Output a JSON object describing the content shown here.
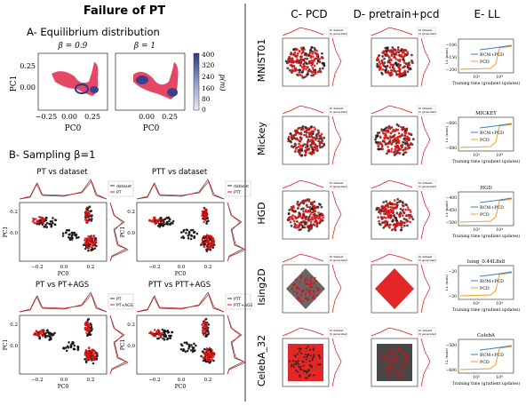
{
  "title": "Failure of PT",
  "panelA": {
    "heading": "A- Equilibrium distribution",
    "subplots": [
      {
        "beta_label": "β = 0.9",
        "xlabel": "PC0",
        "xticks": [
          "−0.25",
          "0.00",
          "0.25"
        ]
      },
      {
        "beta_label": "β = 1",
        "xlabel": "PC0",
        "xticks": [
          "0.00",
          "0.25"
        ]
      }
    ],
    "ylabel": "PC1",
    "yticks": [
      "0.25",
      "0.00"
    ],
    "colorbar": {
      "label": "p(m)",
      "ticks": [
        "400",
        "320",
        "240",
        "160",
        "80",
        "0"
      ]
    }
  },
  "panelB": {
    "heading": "B- Sampling β=1",
    "subplots": [
      {
        "title": "PT vs dataset",
        "legend": [
          "dataset",
          "PT"
        ]
      },
      {
        "title": "PTT vs dataset",
        "legend": [
          "dataset",
          "PTT"
        ]
      },
      {
        "title": "PT vs PT+AGS",
        "legend": [
          "PT",
          "PT+AGS"
        ]
      },
      {
        "title": "PTT vs PTT+AGS",
        "legend": [
          "PTT",
          "PTT+AGS"
        ]
      }
    ],
    "xlabel": "PC0",
    "ylabel": "PC1",
    "xticks": [
      "−0.2",
      "0.0",
      "0.2"
    ],
    "yticks": [
      "0.2",
      "0.0"
    ]
  },
  "columns": {
    "c": "C- PCD",
    "d": "D- pretrain+pcd",
    "e": "E- LL"
  },
  "rows": [
    {
      "name": "MNIST01",
      "ll_title": "",
      "ll_yticks": [
        "−100",
        "−150",
        "−200"
      ]
    },
    {
      "name": "Mickey",
      "ll_title": "MICKEY",
      "ll_yticks": [
        "−660",
        "−680"
      ]
    },
    {
      "name": "HGD",
      "ll_title": "HGD",
      "ll_yticks": [
        "−400",
        "−450",
        "−500"
      ]
    },
    {
      "name": "Ising2D",
      "ll_title": "Ising_0.44L8x8",
      "ll_yticks": [
        "−20",
        "−30"
      ]
    },
    {
      "name": "CelebA_32",
      "ll_title": "CelebA",
      "ll_yticks": [
        "−500",
        "−600"
      ]
    }
  ],
  "ll_legend": [
    "BCM+PCD",
    "PCD"
  ],
  "ll_xlabel": "Training time (gradient updates)",
  "ll_ylabel": "LL (nats)",
  "ll_xticks": [
    "10³",
    "10⁴"
  ],
  "scatter_legend": [
    "dataset",
    "generated"
  ],
  "colors": {
    "data": "#111111",
    "gen": "#e01010",
    "bcm": "#3b7fc4",
    "pcd": "#f39c1f"
  }
}
